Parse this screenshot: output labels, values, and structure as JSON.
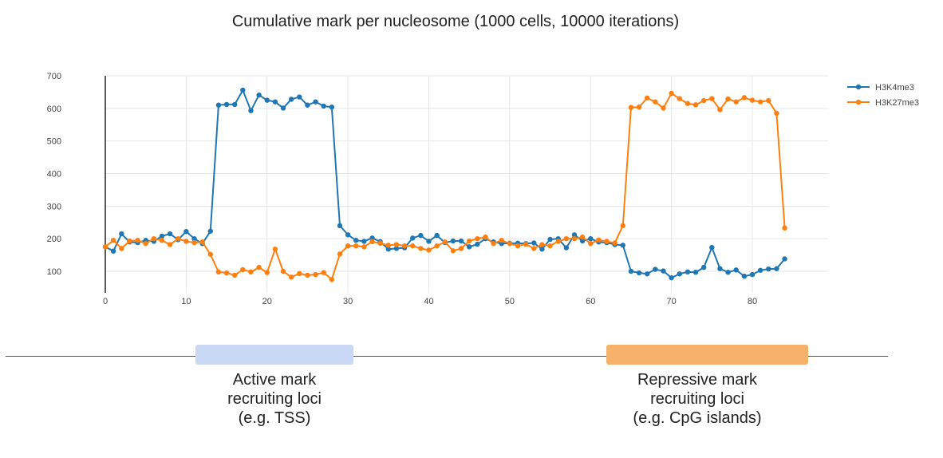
{
  "chart_data": {
    "type": "line",
    "title": "Cumulative mark per nucleosome (1000 cells, 10000 iterations)",
    "xlabel": "",
    "ylabel": "",
    "xlim": [
      0,
      84
    ],
    "ylim": [
      50,
      700
    ],
    "xticks": [
      0,
      10,
      20,
      30,
      40,
      50,
      60,
      70,
      80
    ],
    "yticks": [
      100,
      200,
      300,
      400,
      500,
      600,
      700
    ],
    "grid": true,
    "legend_position": "top-right",
    "series": [
      {
        "name": "H3K4me3",
        "color": "#1f77b4",
        "values": [
          175,
          162,
          215,
          190,
          188,
          195,
          192,
          208,
          215,
          197,
          222,
          200,
          185,
          223,
          610,
          612,
          612,
          656,
          593,
          641,
          625,
          620,
          601,
          628,
          635,
          610,
          620,
          607,
          604,
          240,
          212,
          195,
          192,
          202,
          191,
          168,
          170,
          172,
          202,
          210,
          192,
          210,
          188,
          193,
          193,
          175,
          183,
          200,
          190,
          185,
          186,
          186,
          185,
          187,
          168,
          198,
          200,
          172,
          212,
          193,
          200,
          190,
          188,
          182,
          180,
          100,
          95,
          92,
          106,
          101,
          80,
          92,
          98,
          97,
          112,
          173,
          108,
          97,
          104,
          85,
          90,
          103,
          107,
          108,
          138
        ]
      },
      {
        "name": "H3K27me3",
        "color": "#ff7f0e",
        "values": [
          175,
          195,
          170,
          193,
          195,
          185,
          200,
          195,
          182,
          200,
          192,
          188,
          190,
          152,
          98,
          95,
          88,
          105,
          98,
          112,
          96,
          168,
          100,
          82,
          93,
          88,
          90,
          96,
          75,
          153,
          178,
          178,
          175,
          191,
          186,
          180,
          182,
          178,
          178,
          170,
          165,
          178,
          190,
          163,
          170,
          193,
          200,
          205,
          185,
          195,
          185,
          178,
          183,
          170,
          182,
          178,
          192,
          200,
          200,
          205,
          185,
          196,
          192,
          187,
          240,
          603,
          604,
          632,
          620,
          601,
          646,
          630,
          615,
          611,
          624,
          630,
          596,
          629,
          620,
          633,
          625,
          620,
          624,
          585,
          233
        ]
      }
    ]
  },
  "regions": [
    {
      "label_line1": "Active mark",
      "label_line2": "recruiting loci",
      "label_line3": "(e.g. TSS)",
      "color": "#c9d9f5"
    },
    {
      "label_line1": "Repressive mark",
      "label_line2": "recruiting loci",
      "label_line3": "(e.g. CpG islands)",
      "color": "#f6b26b"
    }
  ]
}
